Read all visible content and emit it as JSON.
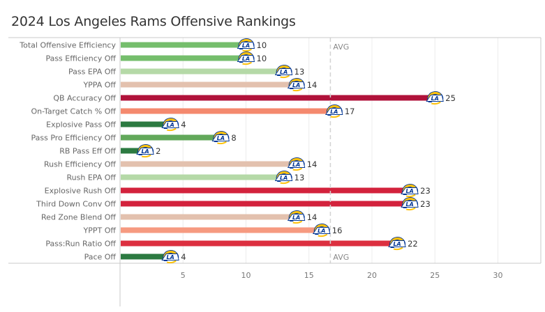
{
  "chart_data": {
    "type": "bar",
    "orientation": "horizontal",
    "title": "2024 Los Angeles Rams Offensive Rankings",
    "xlabel": "",
    "ylabel": "",
    "xlim": [
      0,
      33
    ],
    "x_ticks": [
      5,
      10,
      15,
      20,
      25,
      30
    ],
    "grid": true,
    "reference_line": {
      "label": "AVG",
      "value": 16.7,
      "style": "dashed"
    },
    "bar_marker": "rams-logo",
    "categories": [
      "Total Offensive Efficiency",
      "Pass Efficiency Off",
      "Pass EPA Off",
      "YPPA Off",
      "QB Accuracy Off",
      "On-Target Catch % Off",
      "Explosive Pass Off",
      "Pass Pro Efficiency Off",
      "RB Pass Eff Off",
      "Rush Efficiency Off",
      "Rush EPA Off",
      "Explosive Rush Off",
      "Third Down Conv Off",
      "Red Zone Blend Off",
      "YPPT Off",
      "Pass:Run Ratio Off",
      "Pace Off"
    ],
    "values": [
      10,
      10,
      13,
      14,
      25,
      17,
      4,
      8,
      2,
      14,
      13,
      23,
      23,
      14,
      16,
      22,
      4
    ],
    "colors": [
      "#75be6c",
      "#75be6c",
      "#b5d9a7",
      "#e3c1ae",
      "#b0123a",
      "#f4896e",
      "#2c7a41",
      "#62a85a",
      "#2c7a41",
      "#e3c1ae",
      "#b5d9a7",
      "#d3223c",
      "#d3223c",
      "#e3c1ae",
      "#f69a80",
      "#dc2f3f",
      "#2c7a41"
    ]
  },
  "logo_colors": {
    "gold": "#ffc20e",
    "blue": "#003594",
    "white": "#ffffff"
  },
  "axis_colors": {
    "axis": "#c8c8c8",
    "grid": "#ececec",
    "avg_line": "#d3d3d3"
  }
}
